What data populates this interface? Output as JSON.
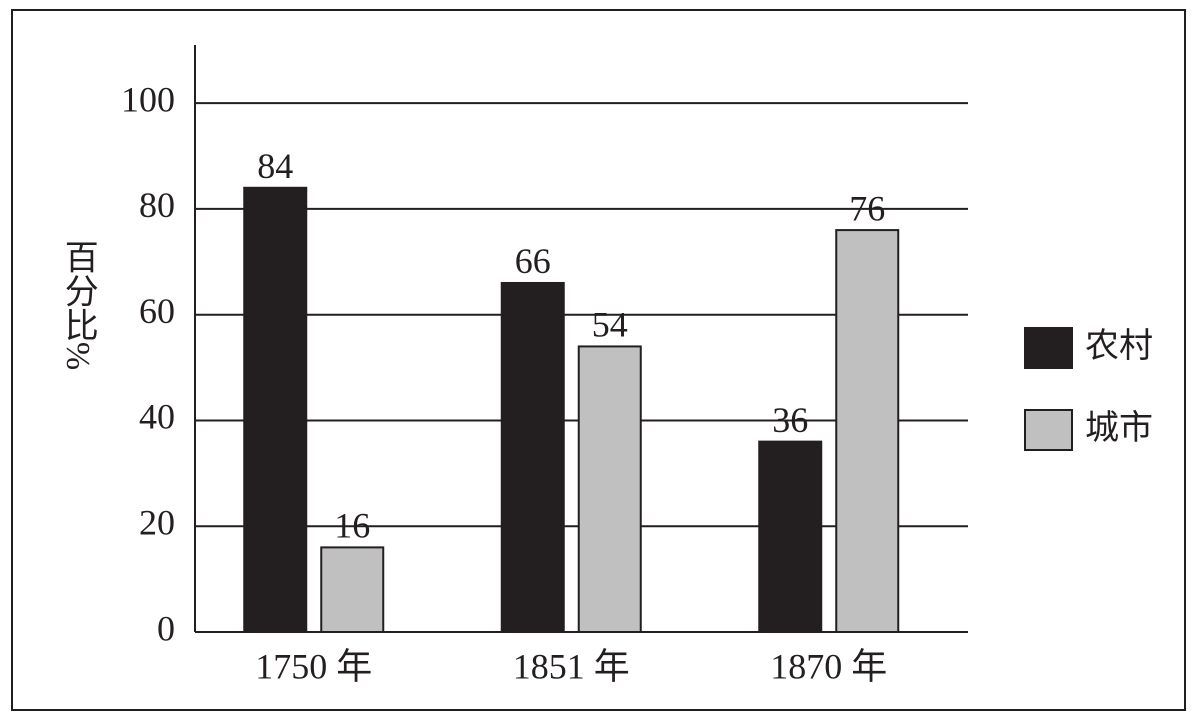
{
  "chart_data": {
    "type": "bar",
    "y_label": "百分比%",
    "categories": [
      "1750 年",
      "1851 年",
      "1870 年"
    ],
    "series": [
      {
        "name": "农村",
        "color": "#231f20",
        "values": [
          84,
          66,
          36
        ]
      },
      {
        "name": "城市",
        "color": "#c0c0c0",
        "values": [
          16,
          54,
          76
        ]
      }
    ],
    "ylim": [
      0,
      111
    ],
    "yticks": [
      0,
      20,
      40,
      60,
      80,
      100
    ],
    "grid": true,
    "legend": "right",
    "data_labels": true
  }
}
